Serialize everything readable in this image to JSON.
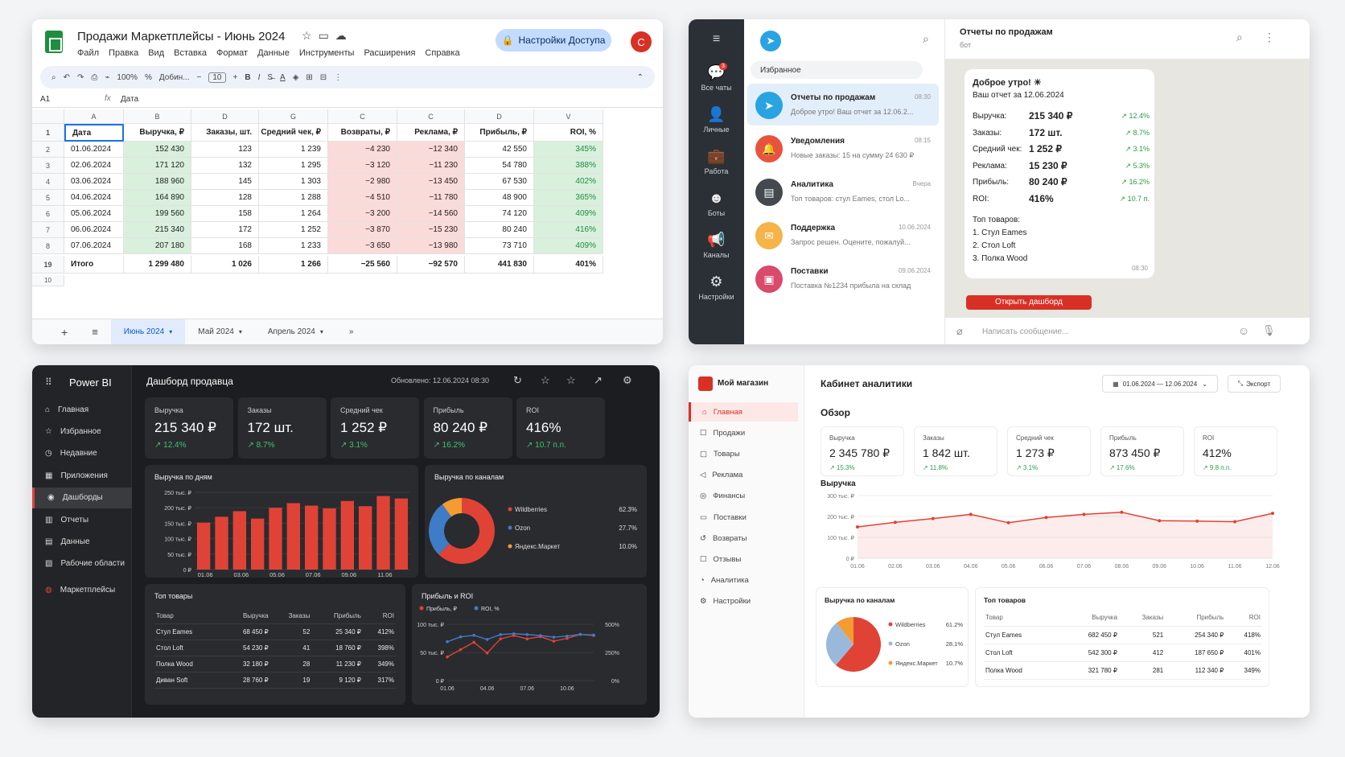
{
  "sheets": {
    "title": "Продажи Маркетплейсы - Июнь 2024",
    "menu": [
      "Файл",
      "Правка",
      "Вид",
      "Вставка",
      "Формат",
      "Данные",
      "Инструменты",
      "Расширения",
      "Справка"
    ],
    "access_label": "Настройки Доступа",
    "avatar": "С",
    "toolbar": [
      "100%",
      "%",
      "Добин...",
      "10",
      "B",
      "I"
    ],
    "cell_ref": "A1",
    "formula_value": "Дата",
    "col_letters": [
      "A",
      "B",
      "D",
      "G",
      "C",
      "C",
      "D",
      "V"
    ],
    "header": [
      "Дата",
      "Выручка, ₽",
      "Заказы, шт.",
      "Средний чек, ₽",
      "Возвраты, ₽",
      "Реклама, ₽",
      "Прибыль, ₽",
      "ROI, %"
    ],
    "rows": [
      {
        "n": "2",
        "c": [
          "01.06.2024",
          "152 430",
          "123",
          "1 239",
          "−4 230",
          "−12 340",
          "42 550",
          "345%"
        ]
      },
      {
        "n": "3",
        "c": [
          "02.06.2024",
          "171 120",
          "132",
          "1 295",
          "−3 120",
          "−11 230",
          "54 780",
          "388%"
        ]
      },
      {
        "n": "4",
        "c": [
          "03.06.2024",
          "188 960",
          "145",
          "1 303",
          "−2 980",
          "−13 450",
          "67 530",
          "402%"
        ]
      },
      {
        "n": "5",
        "c": [
          "04.06.2024",
          "164 890",
          "128",
          "1 288",
          "−4 510",
          "−11 780",
          "48 900",
          "365%"
        ]
      },
      {
        "n": "6",
        "c": [
          "05.06.2024",
          "199 560",
          "158",
          "1 264",
          "−3 200",
          "−14 560",
          "74 120",
          "409%"
        ]
      },
      {
        "n": "7",
        "c": [
          "06.06.2024",
          "215 340",
          "172",
          "1 252",
          "−3 870",
          "−15 230",
          "80 240",
          "416%"
        ]
      },
      {
        "n": "8",
        "c": [
          "07.06.2024",
          "207 180",
          "168",
          "1 233",
          "−3 650",
          "−13 980",
          "73 710",
          "409%"
        ]
      }
    ],
    "total": {
      "n": "19",
      "c": [
        "Итого",
        "1 299 480",
        "1 026",
        "1 266",
        "−25 560",
        "−92 570",
        "441 830",
        "401%"
      ]
    },
    "tabs": [
      "Июнь 2024",
      "Май 2024",
      "Апрель 2024"
    ]
  },
  "telegram": {
    "rail": [
      "Все чаты",
      "Личные",
      "Работа",
      "Боты",
      "Каналы",
      "Настройки"
    ],
    "badge": "3",
    "favorites": "Избранное",
    "chats": [
      {
        "name": "Отчеты по продажам",
        "time": "08:30",
        "preview": "Доброе утро! Ваш отчет за 12.06.2...",
        "color": "#2aa3e3",
        "icon": "telegram-icon"
      },
      {
        "name": "Уведомления",
        "time": "08:15",
        "preview": "Новые заказы: 15 на сумму 24 630 ₽",
        "color": "#e8533f",
        "icon": "bell-icon"
      },
      {
        "name": "Аналитика",
        "time": "Вчера",
        "preview": "Топ товаров: стул Eames, стол Lo...",
        "color": "#444950",
        "icon": "chart-icon"
      },
      {
        "name": "Поддержка",
        "time": "10.06.2024",
        "preview": "Запрос решен. Оцените, пожалуй...",
        "color": "#f5b349",
        "icon": "support-icon"
      },
      {
        "name": "Поставки",
        "time": "09.06.2024",
        "preview": "Поставка №1234 прибыла на склад",
        "color": "#d94a6b",
        "icon": "box-icon"
      }
    ],
    "header_name": "Отчеты по продажам",
    "header_sub": "бот",
    "greeting": "Доброе утро! ☀",
    "report_date": "Ваш отчет за 12.06.2024",
    "metrics": [
      {
        "label": "Выручка:",
        "value": "215 340 ₽",
        "delta": "↗ 12.4%"
      },
      {
        "label": "Заказы:",
        "value": "172 шт.",
        "delta": "↗ 8.7%"
      },
      {
        "label": "Средний чек:",
        "value": "1 252 ₽",
        "delta": "↗ 3.1%"
      },
      {
        "label": "Реклама:",
        "value": "15 230 ₽",
        "delta": "↗ 5.3%"
      },
      {
        "label": "Прибыль:",
        "value": "80 240 ₽",
        "delta": "↗ 16.2%"
      },
      {
        "label": "ROI:",
        "value": "416%",
        "delta": "↗ 10.7 п."
      }
    ],
    "top_title": "Топ товаров:",
    "top_items": [
      "1. Стул Eames",
      "2. Стол Loft",
      "3. Полка Wood"
    ],
    "msg_time": "08:30",
    "button": "Открыть дашборд",
    "input_placeholder": "Написать сообщение..."
  },
  "pbi": {
    "brand": "Power BI",
    "nav": [
      "Главная",
      "Избранное",
      "Недавние",
      "Приложения",
      "Дашборды",
      "Отчеты",
      "Данные",
      "Рабочие области",
      "Маркетплейсы"
    ],
    "title": "Дашборд продавца",
    "updated": "Обновлено: 12.06.2024 08:30",
    "kpis": [
      {
        "label": "Выручка",
        "value": "215 340 ₽",
        "delta": "↗ 12.4%"
      },
      {
        "label": "Заказы",
        "value": "172 шт.",
        "delta": "↗ 8.7%"
      },
      {
        "label": "Средний чек",
        "value": "1 252 ₽",
        "delta": "↗ 3.1%"
      },
      {
        "label": "Прибыль",
        "value": "80 240 ₽",
        "delta": "↗ 16.2%"
      },
      {
        "label": "ROI",
        "value": "416%",
        "delta": "↗ 10.7 п.п."
      }
    ],
    "bar_title": "Выручка по дням",
    "donut_title": "Выручка по каналам",
    "table_title": "Топ товары",
    "table_head": [
      "Товар",
      "Выручка",
      "Заказы",
      "Прибыль",
      "ROI"
    ],
    "table_rows": [
      [
        "Стул Eames",
        "68 450 ₽",
        "52",
        "25 340 ₽",
        "412%"
      ],
      [
        "Стол Loft",
        "54 230 ₽",
        "41",
        "18 760 ₽",
        "398%"
      ],
      [
        "Полка Wood",
        "32 180 ₽",
        "28",
        "11 230 ₽",
        "349%"
      ],
      [
        "Диван Soft",
        "28 760 ₽",
        "19",
        "9 120 ₽",
        "317%"
      ]
    ],
    "line_title": "Прибыль и ROI"
  },
  "shop": {
    "brand": "Мой магазин",
    "nav": [
      "Главная",
      "Продажи",
      "Товары",
      "Реклама",
      "Финансы",
      "Поставки",
      "Возвраты",
      "Отзывы",
      "Аналитика",
      "Настройки"
    ],
    "title": "Кабинет аналитики",
    "date_range": "01.06.2024 — 12.06.2024",
    "export": "Экспорт",
    "overview": "Обзор",
    "kpis": [
      {
        "label": "Выручка",
        "value": "2 345 780 ₽",
        "delta": "↗ 15.3%"
      },
      {
        "label": "Заказы",
        "value": "1 842 шт.",
        "delta": "↗ 11.8%"
      },
      {
        "label": "Средний чек",
        "value": "1 273 ₽",
        "delta": "↗ 3.1%"
      },
      {
        "label": "Прибыль",
        "value": "873 450 ₽",
        "delta": "↗ 17.6%"
      },
      {
        "label": "ROI",
        "value": "412%",
        "delta": "↗ 9.8 п.п."
      }
    ],
    "line_title": "Выручка",
    "pie_title": "Выручка по каналам",
    "table_title": "Топ товаров",
    "table_head": [
      "Товар",
      "Выручка",
      "Заказы",
      "Прибыль",
      "ROI"
    ],
    "table_rows": [
      [
        "Стул Eames",
        "682 450 ₽",
        "521",
        "254 340 ₽",
        "418%"
      ],
      [
        "Стол Loft",
        "542 300 ₽",
        "412",
        "187 650 ₽",
        "401%"
      ],
      [
        "Полка Wood",
        "321 780 ₽",
        "281",
        "112 340 ₽",
        "349%"
      ]
    ]
  },
  "chart_data": [
    {
      "type": "bar",
      "title": "Выручка по дням",
      "categories": [
        "01.06",
        "02.06",
        "03.06",
        "04.06",
        "05.06",
        "06.06",
        "07.06",
        "08.06",
        "09.06",
        "10.06",
        "11.06",
        "12.06"
      ],
      "tick_labels": [
        "01.06",
        "03.06",
        "05.06",
        "07.06",
        "09.06",
        "11.06"
      ],
      "values": [
        152,
        171,
        189,
        165,
        200,
        215,
        207,
        198,
        222,
        205,
        238,
        230
      ],
      "ylim": [
        0,
        250
      ],
      "yticks": [
        "0 ₽",
        "50 тыс. ₽",
        "100 тыс. ₽",
        "150 тыс. ₽",
        "200 тыс. ₽",
        "250 тыс. ₽"
      ],
      "color": "#e04336"
    },
    {
      "type": "pie",
      "title": "Выручка по каналам",
      "labels": [
        "Wildberries",
        "Ozon",
        "Яндекс.Маркет"
      ],
      "values": [
        62.3,
        27.7,
        10.0
      ],
      "value_labels": [
        "62.3%",
        "27.7%",
        "10.0%"
      ],
      "colors": [
        "#e04336",
        "#3f7cc7",
        "#f39c32"
      ]
    },
    {
      "type": "line",
      "title": "Прибыль и ROI",
      "x": [
        "01.06",
        "02.06",
        "03.06",
        "04.06",
        "05.06",
        "06.06",
        "07.06",
        "08.06",
        "09.06",
        "10.06",
        "11.06",
        "12.06"
      ],
      "tick_labels": [
        "01.06",
        "04.06",
        "07.06",
        "10.06"
      ],
      "series": [
        {
          "name": "Прибыль, ₽",
          "values": [
            42,
            55,
            68,
            49,
            74,
            80,
            74,
            78,
            70,
            75,
            82,
            80
          ],
          "color": "#e04336"
        },
        {
          "name": "ROI, %",
          "values": [
            345,
            388,
            402,
            365,
            409,
            416,
            409,
            400,
            385,
            395,
            410,
            405
          ],
          "color": "#3f7cc7"
        }
      ],
      "ylim": [
        0,
        100
      ],
      "y2lim": [
        0,
        500
      ],
      "yticks": [
        "0 ₽",
        "50 тыс. ₽",
        "100 тыс. ₽"
      ],
      "y2ticks": [
        "0%",
        "250%",
        "500%"
      ]
    },
    {
      "type": "area",
      "title": "Выручка",
      "x": [
        "01.06",
        "02.06",
        "03.06",
        "04.06",
        "05.06",
        "06.06",
        "07.06",
        "08.06",
        "09.06",
        "10.06",
        "11.06",
        "12.06"
      ],
      "values": [
        150,
        172,
        190,
        210,
        170,
        195,
        210,
        220,
        180,
        178,
        175,
        215
      ],
      "ylim": [
        0,
        300
      ],
      "yticks": [
        "0 ₽",
        "100 тыс. ₽",
        "200 тыс. ₽",
        "300 тыс. ₽"
      ],
      "color": "#e04336"
    },
    {
      "type": "pie",
      "title": "Выручка по каналам",
      "labels": [
        "Wildberries",
        "Ozon",
        "Яндекс.Маркет"
      ],
      "values": [
        61.2,
        28.1,
        10.7
      ],
      "value_labels": [
        "61.2%",
        "28.1%",
        "10.7%"
      ],
      "colors": [
        "#e04336",
        "#9ab8dc",
        "#f39c32"
      ]
    }
  ]
}
